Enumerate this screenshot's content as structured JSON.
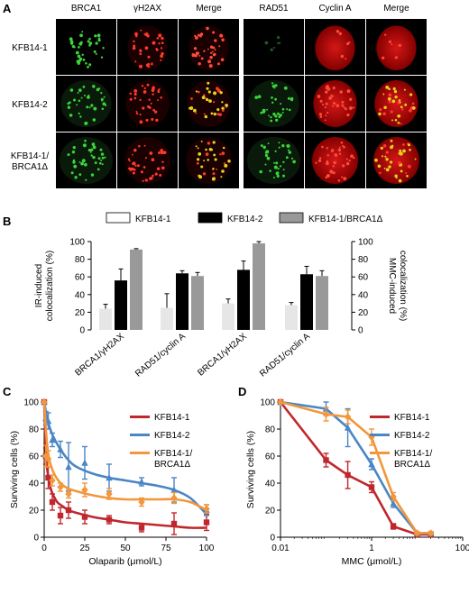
{
  "panel_A": {
    "letter": "A",
    "left_headers": [
      "BRCA1",
      "γH2AX",
      "Merge"
    ],
    "right_headers": [
      "RAD51",
      "Cyclin A",
      "Merge"
    ],
    "rows": [
      {
        "label_lines": [
          "KFB14-1"
        ]
      },
      {
        "label_lines": [
          "KFB14-2"
        ]
      },
      {
        "label_lines": [
          "KFB14-1/",
          "BRCA1Δ"
        ]
      }
    ]
  },
  "chart_data": [
    {
      "panel": "B",
      "type": "bar",
      "legend": [
        "KFB14-1",
        "KFB14-2",
        "KFB14-1/BRCA1Δ"
      ],
      "legend_placement": "top",
      "colors": [
        "#ffffff",
        "#000000",
        "#999999"
      ],
      "subcharts": [
        {
          "ylabel_lines": [
            "IR-induced",
            "colocalization (%)"
          ],
          "ylim": [
            0,
            100
          ],
          "yticks": [
            0,
            20,
            40,
            60,
            80,
            100
          ],
          "categories": [
            "BRCA1/γH2AX",
            "RAD51/cyclin A"
          ],
          "series": [
            {
              "name": "KFB14-1",
              "values": [
                24,
                25
              ],
              "errors": [
                5,
                16
              ]
            },
            {
              "name": "KFB14-2",
              "values": [
                56,
                64
              ],
              "errors": [
                13,
                3
              ]
            },
            {
              "name": "KFB14-1/BRCA1Δ",
              "values": [
                91,
                61
              ],
              "errors": [
                1,
                4
              ]
            }
          ]
        },
        {
          "ylabel_lines": [
            "MMC-induced",
            "colocalization (%)"
          ],
          "ylim": [
            0,
            100
          ],
          "yticks": [
            0,
            20,
            40,
            60,
            80,
            100
          ],
          "categories": [
            "BRCA1/γH2AX",
            "RAD51/cyclin A"
          ],
          "series": [
            {
              "name": "KFB14-1",
              "values": [
                30,
                28
              ],
              "errors": [
                5,
                3
              ]
            },
            {
              "name": "KFB14-2",
              "values": [
                68,
                63
              ],
              "errors": [
                10,
                9
              ]
            },
            {
              "name": "KFB14-1/BRCA1Δ",
              "values": [
                98,
                61
              ],
              "errors": [
                2,
                6
              ]
            }
          ]
        }
      ]
    },
    {
      "panel": "C",
      "type": "line",
      "xlabel": "Olaparib (μmol/L)",
      "ylabel": "Surviving cells (%)",
      "xlim": [
        0,
        100
      ],
      "ylim": [
        0,
        100
      ],
      "xticks": [
        0,
        25,
        50,
        75,
        100
      ],
      "yticks": [
        0,
        20,
        40,
        60,
        80,
        100
      ],
      "legend_placement": "top-right",
      "series": [
        {
          "name": "KFB14-1",
          "legend_lines": [
            "KFB14-1"
          ],
          "color": "#c0272d",
          "marker": "square",
          "x": [
            0,
            1,
            2.5,
            5,
            10,
            15,
            25,
            40,
            60,
            80,
            100
          ],
          "y": [
            100,
            60,
            44,
            26,
            16,
            20,
            15,
            13,
            7,
            10,
            11
          ],
          "err": [
            0,
            6,
            8,
            6,
            6,
            6,
            5,
            3,
            3,
            8,
            6
          ],
          "fit_x": [
            0,
            1,
            2,
            4,
            6,
            8,
            10,
            15,
            20,
            30,
            40,
            50,
            60,
            70,
            80,
            90,
            100
          ],
          "fit_y": [
            100,
            64,
            49,
            36,
            30,
            26,
            24,
            20,
            18,
            15,
            13,
            11,
            10,
            9,
            8,
            7,
            7
          ]
        },
        {
          "name": "KFB14-2",
          "legend_lines": [
            "KFB14-2"
          ],
          "color": "#4a86c5",
          "marker": "triangle",
          "x": [
            0,
            1,
            2.5,
            5,
            10,
            15,
            25,
            40,
            60,
            80,
            100
          ],
          "y": [
            100,
            88,
            86,
            72,
            65,
            52,
            55,
            44,
            41,
            35,
            20
          ],
          "err": [
            0,
            5,
            6,
            5,
            6,
            18,
            12,
            10,
            3,
            9,
            4
          ],
          "fit_x": [
            0,
            2,
            5,
            10,
            15,
            20,
            30,
            40,
            50,
            60,
            70,
            80,
            90,
            100
          ],
          "fit_y": [
            100,
            87,
            76,
            65,
            57,
            52,
            47,
            44,
            42,
            40,
            38,
            35,
            29,
            17
          ]
        },
        {
          "name": "KFB14-1/BRCA1Δ",
          "legend_lines": [
            "KFB14-1/",
            "BRCA1Δ"
          ],
          "color": "#f2973b",
          "marker": "diamond",
          "x": [
            0,
            1,
            2.5,
            5,
            10,
            15,
            25,
            40,
            60,
            80,
            100
          ],
          "y": [
            100,
            60,
            58,
            42,
            37,
            32,
            35,
            32,
            26,
            29,
            21
          ],
          "err": [
            0,
            8,
            6,
            4,
            3,
            3,
            5,
            4,
            3,
            4,
            3
          ],
          "fit_x": [
            0,
            2,
            5,
            10,
            15,
            20,
            30,
            40,
            50,
            60,
            70,
            80,
            90,
            100
          ],
          "fit_y": [
            100,
            66,
            50,
            40,
            36,
            34,
            31,
            29,
            28,
            28,
            28,
            28,
            26,
            20
          ]
        }
      ]
    },
    {
      "panel": "D",
      "type": "line",
      "xlabel": "MMC (μmol/L)",
      "ylabel": "Surviving cells (%)",
      "xscale": "log",
      "xlim": [
        0.01,
        100
      ],
      "ylim": [
        0,
        100
      ],
      "xticks": [
        0.01,
        1,
        100
      ],
      "xtick_labels": [
        "0.01",
        "1",
        "100"
      ],
      "yticks": [
        0,
        20,
        40,
        60,
        80,
        100
      ],
      "legend_placement": "top-right",
      "series": [
        {
          "name": "KFB14-1",
          "legend_lines": [
            "KFB14-1"
          ],
          "color": "#c0272d",
          "marker": "square",
          "x": [
            0.01,
            0.1,
            0.3,
            1,
            3,
            10,
            20
          ],
          "y": [
            100,
            57,
            46,
            37,
            8,
            2,
            2
          ],
          "err": [
            0,
            5,
            10,
            4,
            2,
            1,
            1
          ]
        },
        {
          "name": "KFB14-2",
          "legend_lines": [
            "KFB14-2"
          ],
          "color": "#4a86c5",
          "marker": "triangle",
          "x": [
            0.01,
            0.1,
            0.3,
            1,
            3,
            10,
            20
          ],
          "y": [
            100,
            95,
            81,
            54,
            25,
            3,
            3
          ],
          "err": [
            0,
            5,
            14,
            4,
            3,
            1,
            1
          ]
        },
        {
          "name": "KFB14-1/BRCA1Δ",
          "legend_lines": [
            "KFB14-1/",
            "BRCA1Δ"
          ],
          "color": "#f2973b",
          "marker": "diamond",
          "x": [
            0.01,
            0.1,
            0.3,
            1,
            3,
            10,
            20
          ],
          "y": [
            100,
            91,
            89,
            74,
            30,
            3,
            3
          ],
          "err": [
            0,
            5,
            5,
            6,
            3,
            1,
            1
          ]
        }
      ]
    }
  ]
}
